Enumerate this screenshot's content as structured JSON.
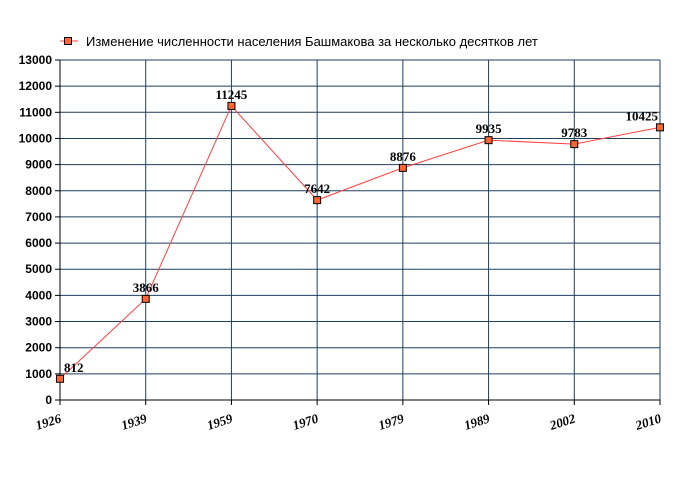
{
  "chart_data": {
    "type": "line",
    "title": "",
    "xlabel": "",
    "ylabel": "",
    "legend_position": "top-left",
    "grid": true,
    "ylim": [
      0,
      13000
    ],
    "y_ticks": [
      "0",
      "1000",
      "2000",
      "3000",
      "4000",
      "5000",
      "6000",
      "7000",
      "8000",
      "9000",
      "10000",
      "11000",
      "12000",
      "13000"
    ],
    "categories": [
      "1926",
      "1939",
      "1959",
      "1970",
      "1979",
      "1989",
      "2002",
      "2010"
    ],
    "series": [
      {
        "name": "Изменение численности населения Башмакова за несколько десятков лет",
        "values": [
          812,
          3866,
          11245,
          7642,
          8876,
          9935,
          9783,
          10425
        ],
        "labels": [
          "812",
          "3866",
          "11245",
          "7642",
          "8876",
          "9935",
          "9783",
          "10425"
        ],
        "line_color": "#ff4040",
        "marker_fill": "#ff6633",
        "marker_stroke": "#000000"
      }
    ],
    "grid_color": "#1f3f5f",
    "axis_color": "#000000"
  }
}
